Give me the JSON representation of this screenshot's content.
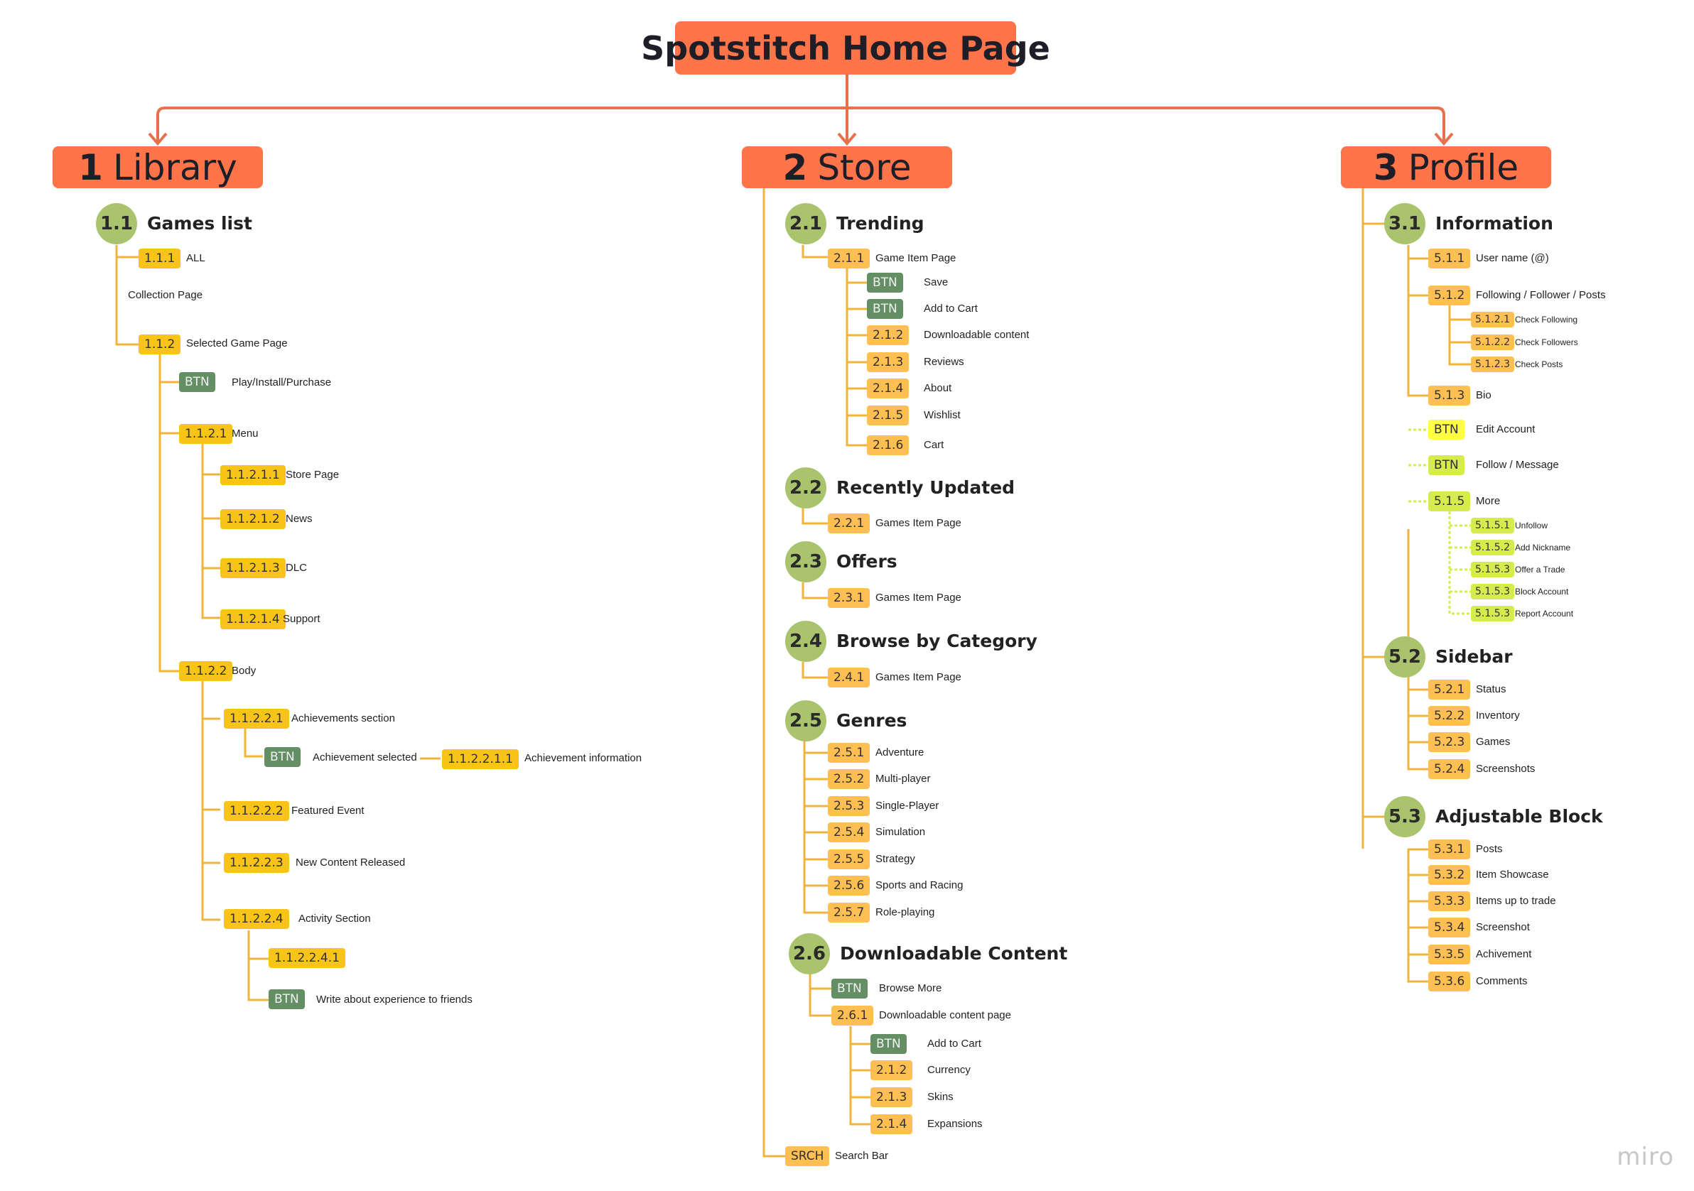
{
  "title": "Spotstitch Home Page",
  "colors": {
    "title": "#ff7448",
    "connector": "#f0b43c",
    "group_circle": "#a9c46c",
    "tag_yellow": "#f8c418",
    "tag_orange": "#ffbf52",
    "tag_button": "#648f64",
    "tag_light": "#ffff44",
    "tag_lime": "#d6ec4e"
  },
  "sections": {
    "library": {
      "num": "1",
      "name": "Library"
    },
    "store": {
      "num": "2",
      "name": "Store"
    },
    "profile": {
      "num": "3",
      "name": "Profile"
    }
  },
  "library": {
    "n11": "1.1",
    "t11": "Games list",
    "n111": "1.1.1",
    "l111": "ALL",
    "collection": "Collection Page",
    "n112": "1.1.2",
    "l112": "Selected Game Page",
    "btn": "BTN",
    "lplay": "Play/Install/Purchase",
    "n1121": "1.1.2.1",
    "l1121": "Menu",
    "n11211": "1.1.2.1.1",
    "l11211": "Store Page",
    "n11212": "1.1.2.1.2",
    "l11212": "News",
    "n11213": "1.1.2.1.3",
    "l11213": "DLC",
    "n11214": "1.1.2.1.4",
    "l11214": "Support",
    "n1122": "1.1.2.2",
    "l1122": "Body",
    "n11221": "1.1.2.2.1",
    "l11221": "Achievements section",
    "lach": "Achievement selected",
    "n112211": "1.1.2.2.1.1",
    "l112211": "Achievement information",
    "n11222": "1.1.2.2.2",
    "l11222": "Featured Event",
    "n11223": "1.1.2.2.3",
    "l11223": "New Content Released",
    "n11224": "1.1.2.2.4",
    "l11224": "Activity Section",
    "n112241": "1.1.2.2.4.1",
    "lwrite": "Write about experience to friends"
  },
  "store": {
    "n21": "2.1",
    "t21": "Trending",
    "n211": "2.1.1",
    "l211": "Game Item Page",
    "btn": "BTN",
    "lsave": "Save",
    "lcart": "Add to Cart",
    "n212": "2.1.2",
    "l212": "Downloadable content",
    "n213": "2.1.3",
    "l213": "Reviews",
    "n214": "2.1.4",
    "l214": "About",
    "n215": "2.1.5",
    "l215": "Wishlist",
    "n216": "2.1.6",
    "l216": "Cart",
    "n22": "2.2",
    "t22": "Recently Updated",
    "n221": "2.2.1",
    "l221": "Games Item Page",
    "n23": "2.3",
    "t23": "Offers",
    "n231": "2.3.1",
    "l231": "Games Item Page",
    "n24": "2.4",
    "t24": "Browse by Category",
    "n241": "2.4.1",
    "l241": "Games Item Page",
    "n25": "2.5",
    "t25": "Genres",
    "n251": "2.5.1",
    "l251": "Adventure",
    "n252": "2.5.2",
    "l252": "Multi-player",
    "n253": "2.5.3",
    "l253": "Single-Player",
    "n254": "2.5.4",
    "l254": "Simulation",
    "n255": "2.5.5",
    "l255": "Strategy",
    "n256": "2.5.6",
    "l256": "Sports and Racing",
    "n257": "2.5.7",
    "l257": "Role-playing",
    "n26": "2.6",
    "t26": "Downloadable Content",
    "lbrowse": "Browse More",
    "n261": "2.6.1",
    "l261": "Downloadable content page",
    "ladd": "Add to Cart",
    "n2612": "2.1.2",
    "l2612": "Currency",
    "n2613": "2.1.3",
    "l2613": "Skins",
    "n2614": "2.1.4",
    "l2614": "Expansions",
    "srch": "SRCH",
    "lsrch": "Search Bar"
  },
  "profile": {
    "n31": "3.1",
    "t31": "Information",
    "n511": "5.1.1",
    "l511": "User name (@)",
    "n512": "5.1.2",
    "l512": "Following / Follower / Posts",
    "n5121": "5.1.2.1",
    "l5121": "Check Following",
    "n5122": "5.1.2.2",
    "l5122": "Check Followers",
    "n5123": "5.1.2.3",
    "l5123": "Check Posts",
    "n513": "5.1.3",
    "l513": "Bio",
    "btn": "BTN",
    "ledit": "Edit Account",
    "lfollow": "Follow / Message",
    "n515": "5.1.5",
    "l515": "More",
    "n5151": "5.1.5.1",
    "l5151": "Unfollow",
    "n5152": "5.1.5.2",
    "l5152": "Add Nickname",
    "n5153a": "5.1.5.3",
    "l5153a": "Offer a Trade",
    "n5153b": "5.1.5.3",
    "l5153b": "Block Account",
    "n5153c": "5.1.5.3",
    "l5153c": "Report Account",
    "n52": "5.2",
    "t52": "Sidebar",
    "n521": "5.2.1",
    "l521": "Status",
    "n522": "5.2.2",
    "l522": "Inventory",
    "n523": "5.2.3",
    "l523": "Games",
    "n524": "5.2.4",
    "l524": "Screenshots",
    "n53": "5.3",
    "t53": "Adjustable Block",
    "n531": "5.3.1",
    "l531": "Posts",
    "n532": "5.3.2",
    "l532": "Item Showcase",
    "n533": "5.3.3",
    "l533": "Items up to trade",
    "n534": "5.3.4",
    "l534": "Screenshot",
    "n535": "5.3.5",
    "l535": "Achivement",
    "n536": "5.3.6",
    "l536": "Comments"
  },
  "watermark": "miro"
}
